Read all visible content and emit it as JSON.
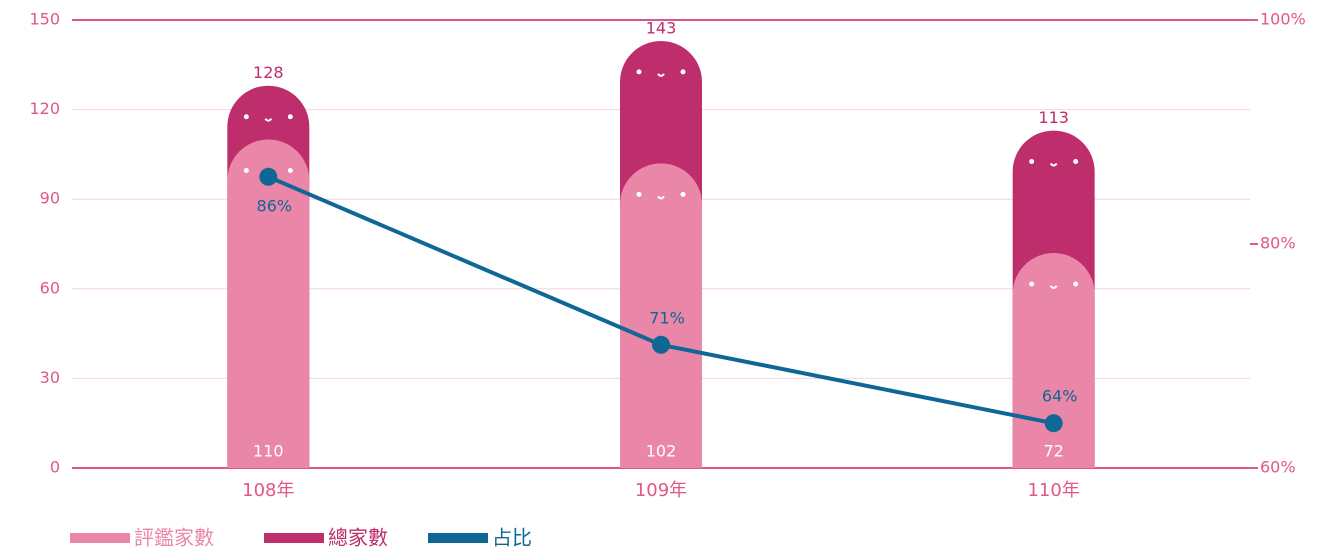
{
  "chart_data": {
    "type": "bar",
    "categories": [
      "108年",
      "109年",
      "110年"
    ],
    "series": [
      {
        "name": "評鑑家數",
        "color": "#ea87a8",
        "values": [
          110,
          102,
          72
        ]
      },
      {
        "name": "總家數",
        "color": "#be2d6c",
        "values": [
          128,
          143,
          113
        ]
      },
      {
        "name": "占比",
        "color": "#0f6796",
        "type": "line",
        "axis": "y2",
        "values": [
          86,
          71,
          64
        ],
        "value_labels": [
          "86%",
          "71%",
          "64%"
        ]
      }
    ],
    "ylim": [
      0,
      150
    ],
    "yticks": [
      0,
      30,
      60,
      90,
      120,
      150
    ],
    "y2lim": [
      60,
      100
    ],
    "y2ticks": [
      {
        "value": 60,
        "label": "60%"
      },
      {
        "value": 80,
        "label": "80%"
      },
      {
        "value": 100,
        "label": "100%"
      }
    ],
    "grid": true
  }
}
